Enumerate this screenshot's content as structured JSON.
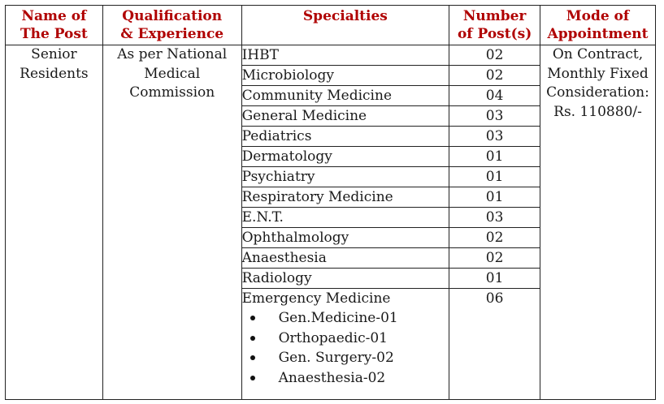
{
  "headers": {
    "name": [
      "Name of",
      "The Post"
    ],
    "qualification": [
      "Qualification",
      "& Experience"
    ],
    "specialties": "Specialties",
    "number": [
      "Number",
      "of Post(s)"
    ],
    "mode": [
      "Mode of",
      "Appointment"
    ]
  },
  "post_name": [
    "Senior",
    "Residents"
  ],
  "qualification": [
    "As per National",
    "Medical",
    "Commission"
  ],
  "mode": [
    "On Contract,",
    "Monthly Fixed",
    "Consideration:",
    "Rs. 110880/-"
  ],
  "rows": [
    {
      "specialty": "IHBT",
      "posts": "02"
    },
    {
      "specialty": "Microbiology",
      "posts": "02"
    },
    {
      "specialty": "Community Medicine",
      "posts": "04"
    },
    {
      "specialty": "General Medicine",
      "posts": "03"
    },
    {
      "specialty": "Pediatrics",
      "posts": "03"
    },
    {
      "specialty": "Dermatology",
      "posts": "01"
    },
    {
      "specialty": "Psychiatry",
      "posts": "01"
    },
    {
      "specialty": "Respiratory Medicine",
      "posts": "01"
    },
    {
      "specialty": "E.N.T.",
      "posts": "03"
    },
    {
      "specialty": "Ophthalmology",
      "posts": "02"
    },
    {
      "specialty": "Anaesthesia",
      "posts": "02"
    },
    {
      "specialty": "Radiology",
      "posts": "01"
    }
  ],
  "emergency": {
    "specialty": "Emergency Medicine",
    "posts": "06",
    "sub_items": [
      "Gen.Medicine-01",
      "Orthopaedic-01",
      "Gen. Surgery-02",
      "Anaesthesia-02"
    ]
  }
}
